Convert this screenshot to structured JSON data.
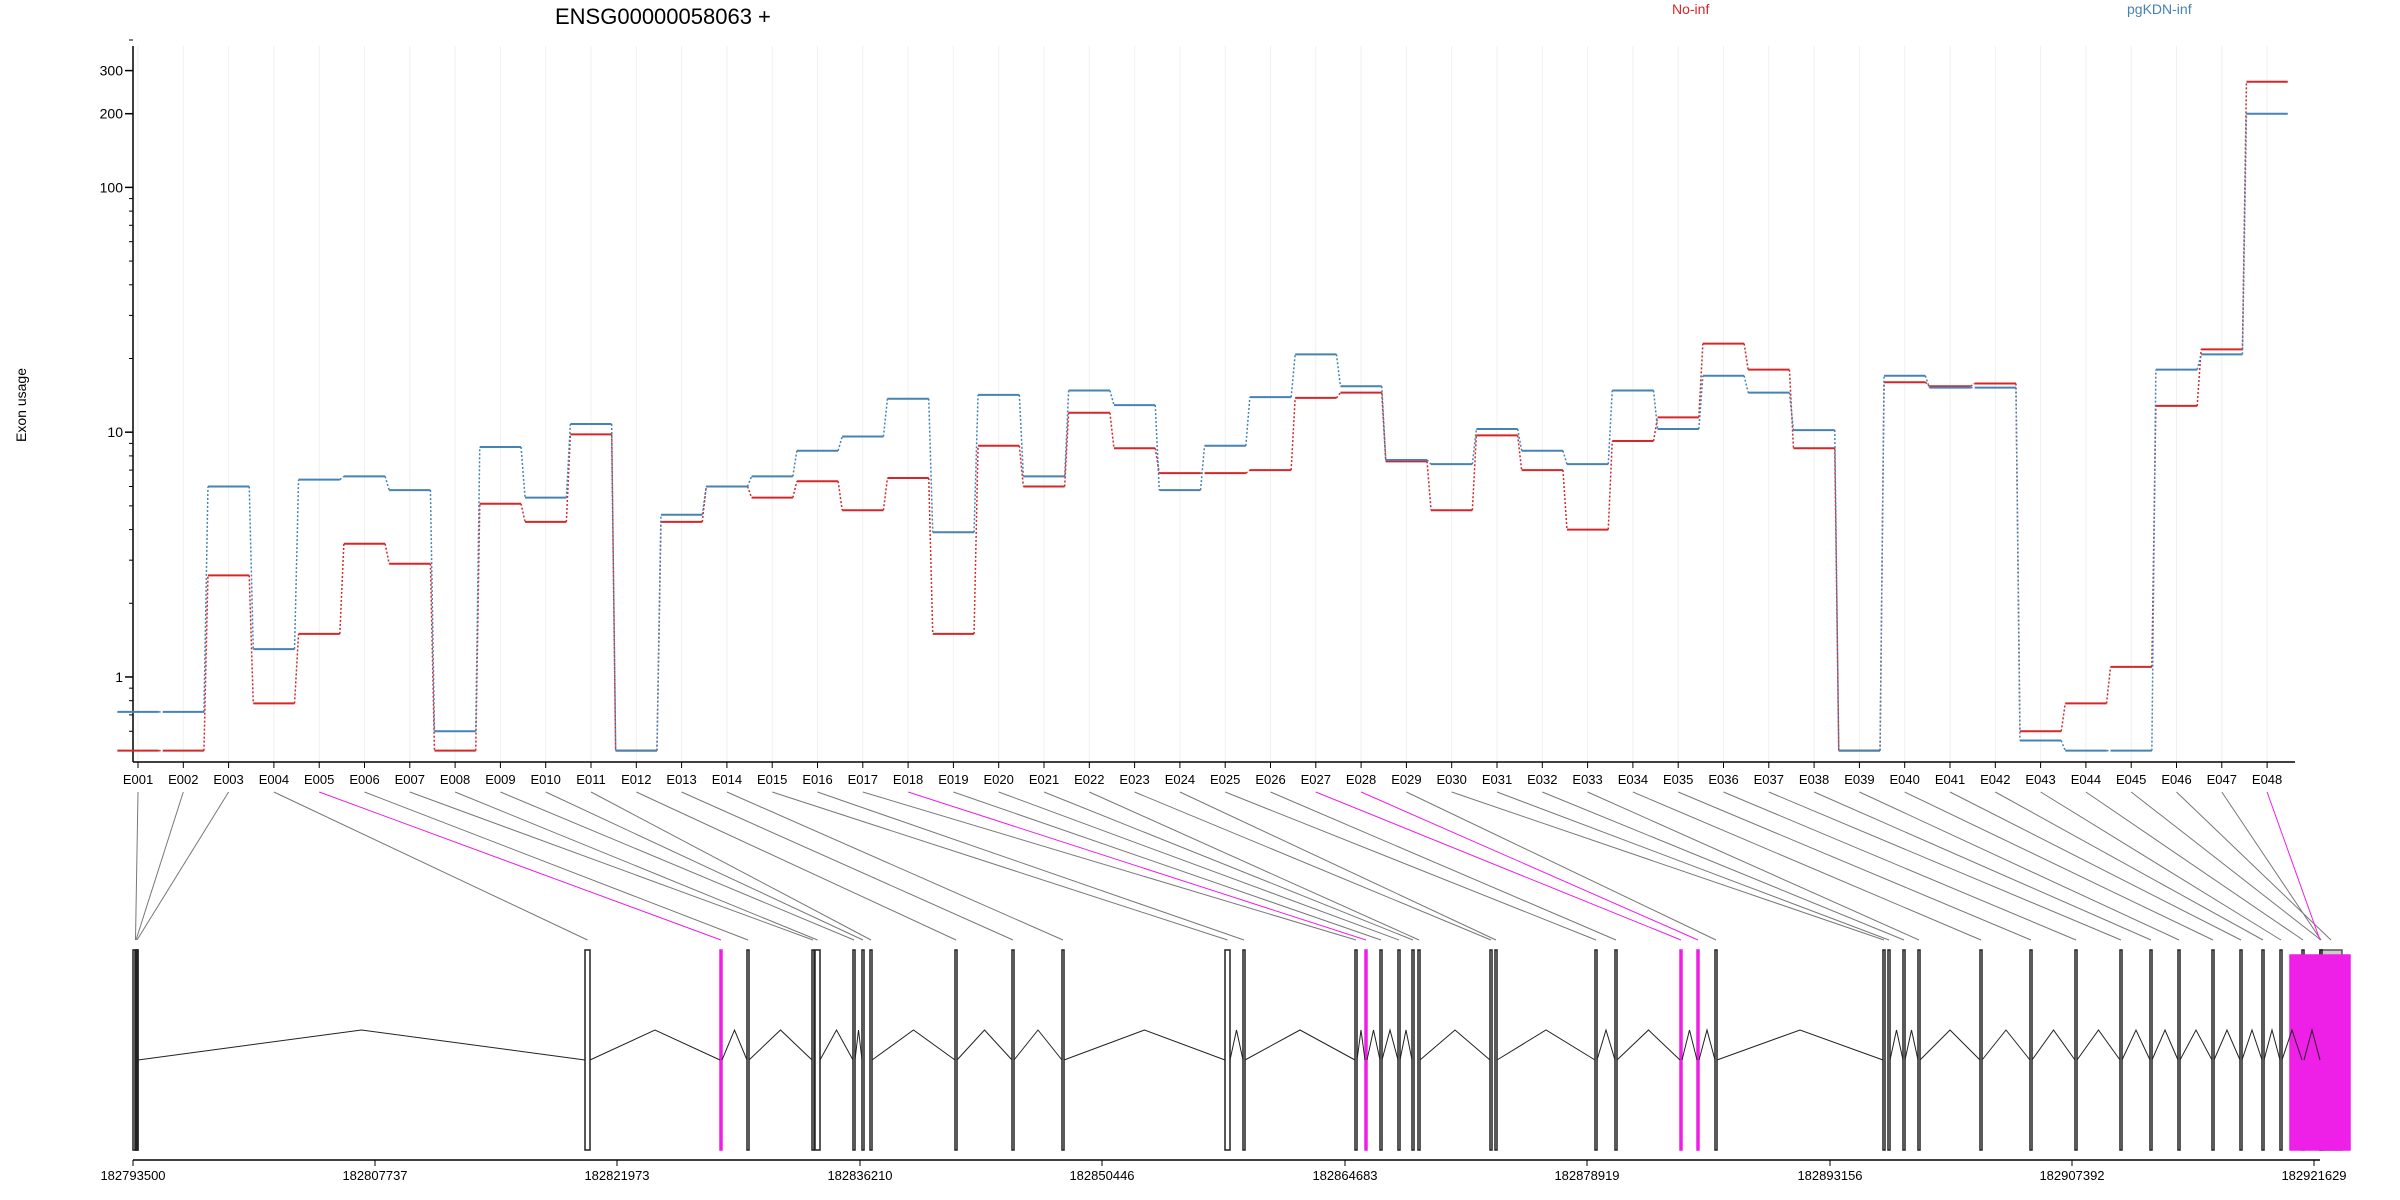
{
  "chart_data": {
    "type": "line",
    "title": "ENSG00000058063 +",
    "ylabel": "Exon usage",
    "xlabel": "",
    "y_scale": "log",
    "ylim": [
      0.48,
      400
    ],
    "y_ticks": [
      1,
      10,
      100,
      200,
      300
    ],
    "grid": "vertical per exon",
    "legend_placement": "top",
    "categories": [
      "E001",
      "E002",
      "E003",
      "E004",
      "E005",
      "E006",
      "E007",
      "E008",
      "E009",
      "E010",
      "E011",
      "E012",
      "E013",
      "E014",
      "E015",
      "E016",
      "E017",
      "E018",
      "E019",
      "E020",
      "E021",
      "E022",
      "E023",
      "E024",
      "E025",
      "E026",
      "E027",
      "E028",
      "E029",
      "E030",
      "E031",
      "E032",
      "E033",
      "E034",
      "E035",
      "E036",
      "E037",
      "E038",
      "E039",
      "E040",
      "E041",
      "E042",
      "E043",
      "E044",
      "E045",
      "E046",
      "E047",
      "E048"
    ],
    "series": [
      {
        "name": "No-inf",
        "color": "#d62728",
        "values": [
          0.5,
          0.5,
          2.6,
          0.78,
          1.5,
          3.5,
          2.9,
          0.5,
          5.1,
          4.3,
          9.8,
          0.5,
          4.3,
          6.0,
          5.4,
          6.3,
          4.8,
          6.5,
          1.5,
          8.8,
          6.0,
          12.0,
          8.6,
          6.8,
          6.8,
          7.0,
          13.8,
          14.5,
          7.6,
          4.8,
          9.7,
          7.0,
          4.0,
          9.2,
          11.5,
          23.0,
          18.0,
          8.6,
          0.5,
          16.0,
          15.4,
          15.8,
          0.6,
          0.78,
          1.1,
          12.8,
          21.8,
          270
        ]
      },
      {
        "name": "pgKDN-inf",
        "color": "#4682b4",
        "values": [
          0.72,
          0.72,
          6.0,
          1.3,
          6.4,
          6.6,
          5.8,
          0.6,
          8.7,
          5.4,
          10.8,
          0.5,
          4.6,
          6.0,
          6.6,
          8.4,
          9.6,
          13.7,
          3.9,
          14.2,
          6.6,
          14.8,
          12.9,
          5.8,
          8.8,
          13.9,
          20.8,
          15.4,
          7.7,
          7.4,
          10.3,
          8.4,
          7.4,
          14.8,
          10.3,
          17.0,
          14.5,
          10.2,
          0.5,
          17.0,
          15.2,
          15.2,
          0.55,
          0.5,
          0.5,
          18.0,
          20.8,
          200
        ]
      }
    ]
  },
  "gene_model": {
    "coordinates": [
      "182793500",
      "182807737",
      "182821973",
      "182836210",
      "182850446",
      "182864683",
      "182878919",
      "182893156",
      "182907392",
      "182921629"
    ],
    "highlighted_exons": [
      "E005",
      "E018",
      "E027",
      "E028",
      "E048"
    ],
    "highlight_color": "#ee1fe6",
    "gray_exon": "E046",
    "gray_color": "#cccccc"
  }
}
